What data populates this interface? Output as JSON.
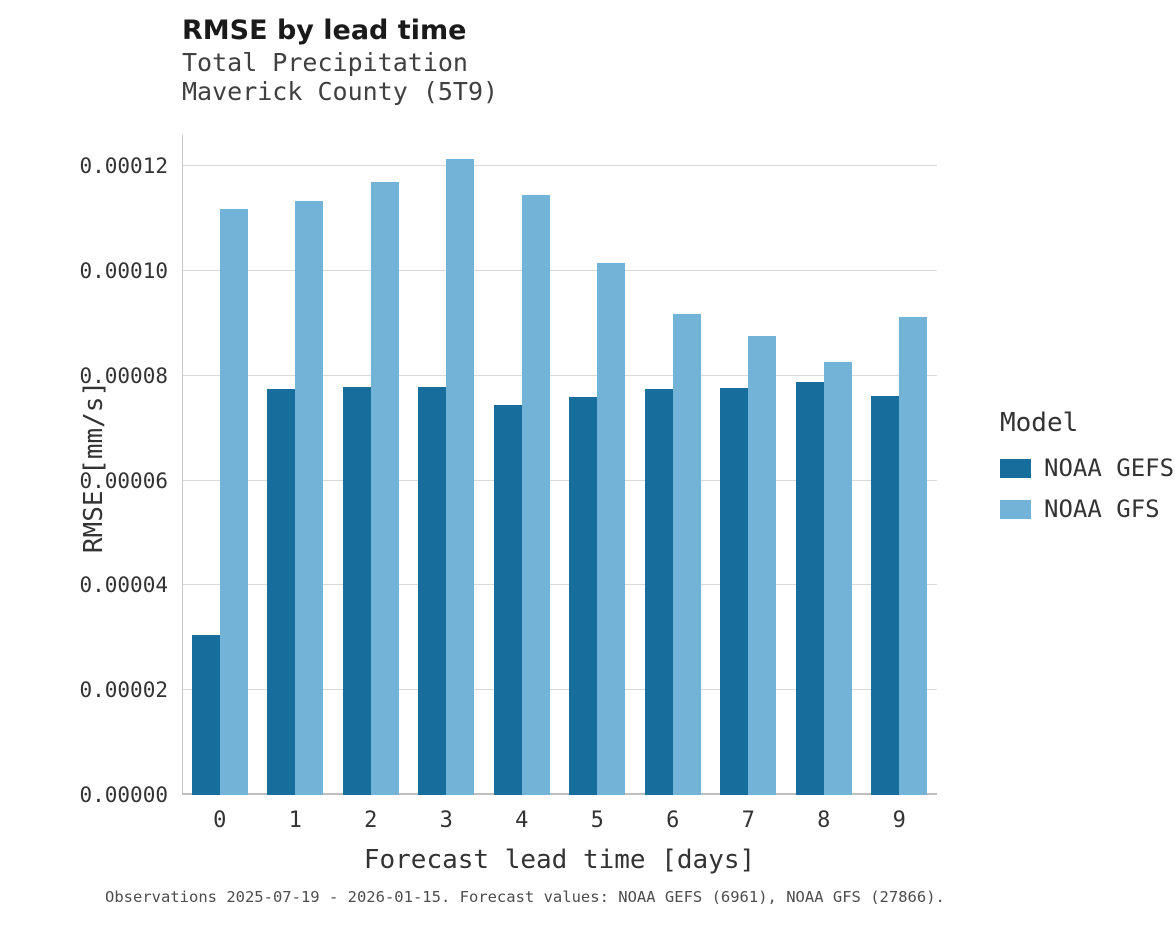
{
  "header": {
    "title": "RMSE by lead time",
    "subtitle1": "Total Precipitation",
    "subtitle2": "Maverick County (5T9)"
  },
  "caption": "Observations 2025-07-19 - 2026-01-15. Forecast values: NOAA GEFS (6961), NOAA GFS (27866).",
  "legend": {
    "title": "Model",
    "entries": [
      {
        "label": "NOAA GEFS",
        "color": "#176d9c"
      },
      {
        "label": "NOAA GFS",
        "color": "#74b3d8"
      }
    ]
  },
  "chart_data": {
    "type": "bar",
    "title": "RMSE by lead time",
    "subtitle": "Total Precipitation — Maverick County (5T9)",
    "xlabel": "Forecast lead time [days]",
    "ylabel": "RMSE [mm/s]",
    "categories": [
      "0",
      "1",
      "2",
      "3",
      "4",
      "5",
      "6",
      "7",
      "8",
      "9"
    ],
    "series": [
      {
        "name": "NOAA GEFS",
        "color": "#176d9c",
        "values": [
          3.05e-05,
          7.75e-05,
          7.79e-05,
          7.79e-05,
          7.44e-05,
          7.59e-05,
          7.75e-05,
          7.77e-05,
          7.88e-05,
          7.61e-05
        ]
      },
      {
        "name": "NOAA GFS",
        "color": "#74b3d8",
        "values": [
          0.0001118,
          0.0001134,
          0.0001171,
          0.0001215,
          0.0001146,
          0.0001016,
          9.19e-05,
          8.77e-05,
          8.26e-05,
          9.13e-05
        ]
      }
    ],
    "ylim": [
      0,
      0.000126
    ],
    "yticks": [
      {
        "value": 0.0,
        "label": "0.00000"
      },
      {
        "value": 2e-05,
        "label": "0.00002"
      },
      {
        "value": 4e-05,
        "label": "0.00004"
      },
      {
        "value": 6e-05,
        "label": "0.00006"
      },
      {
        "value": 8e-05,
        "label": "0.00008"
      },
      {
        "value": 0.0001,
        "label": "0.00010"
      },
      {
        "value": 0.00012,
        "label": "0.00012"
      }
    ],
    "grid": true,
    "legend_position": "right"
  }
}
